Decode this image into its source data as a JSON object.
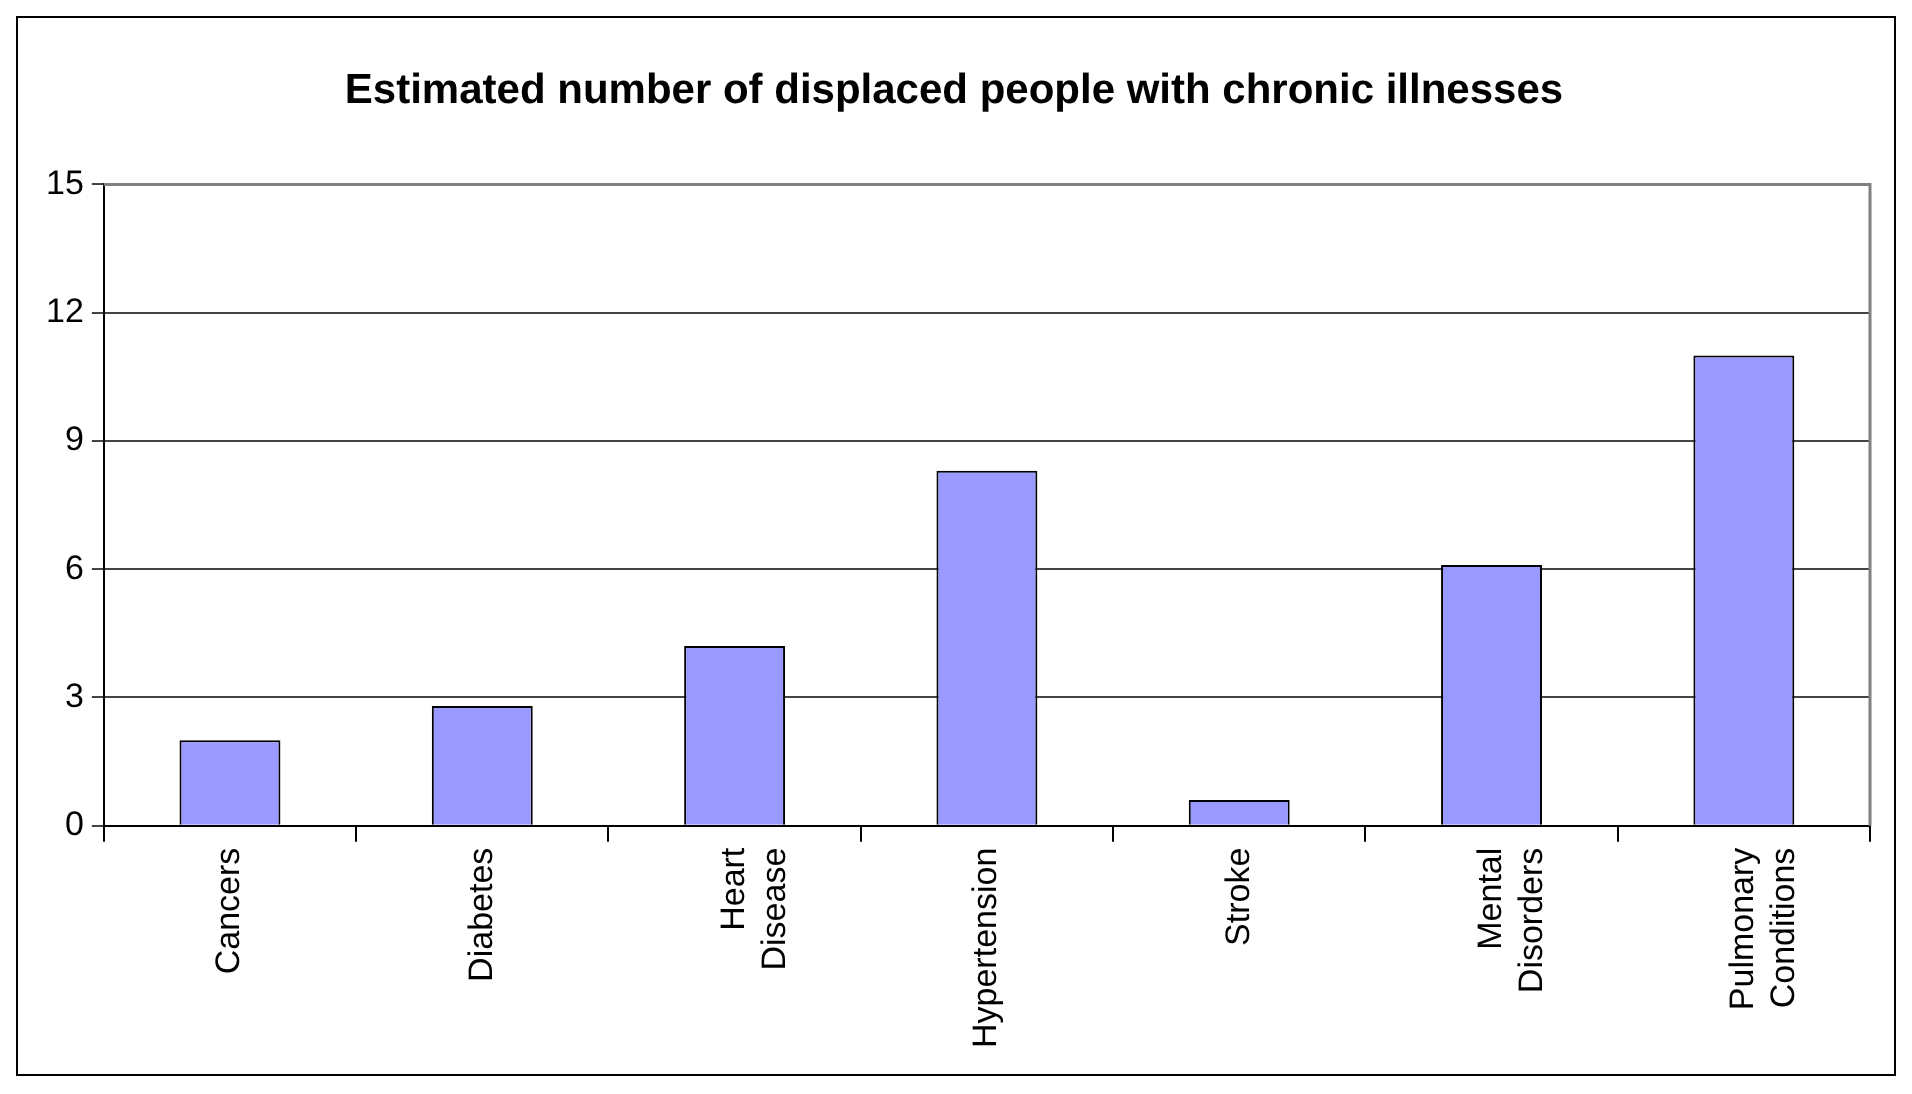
{
  "chart_data": {
    "type": "bar",
    "title": "Estimated number of displaced people with chronic illnesses",
    "categories": [
      "Cancers",
      "Diabetes",
      "Heart Disease",
      "Hypertension",
      "Stroke",
      "Mental Disorders",
      "Pulmonary Conditions"
    ],
    "values": [
      2.0,
      2.8,
      4.2,
      8.3,
      0.6,
      6.1,
      11.0
    ],
    "color": "#9999ff",
    "ylim": [
      0,
      15
    ],
    "yticks": [
      0,
      3,
      6,
      9,
      12,
      15
    ],
    "grid": "y",
    "legend": false
  }
}
